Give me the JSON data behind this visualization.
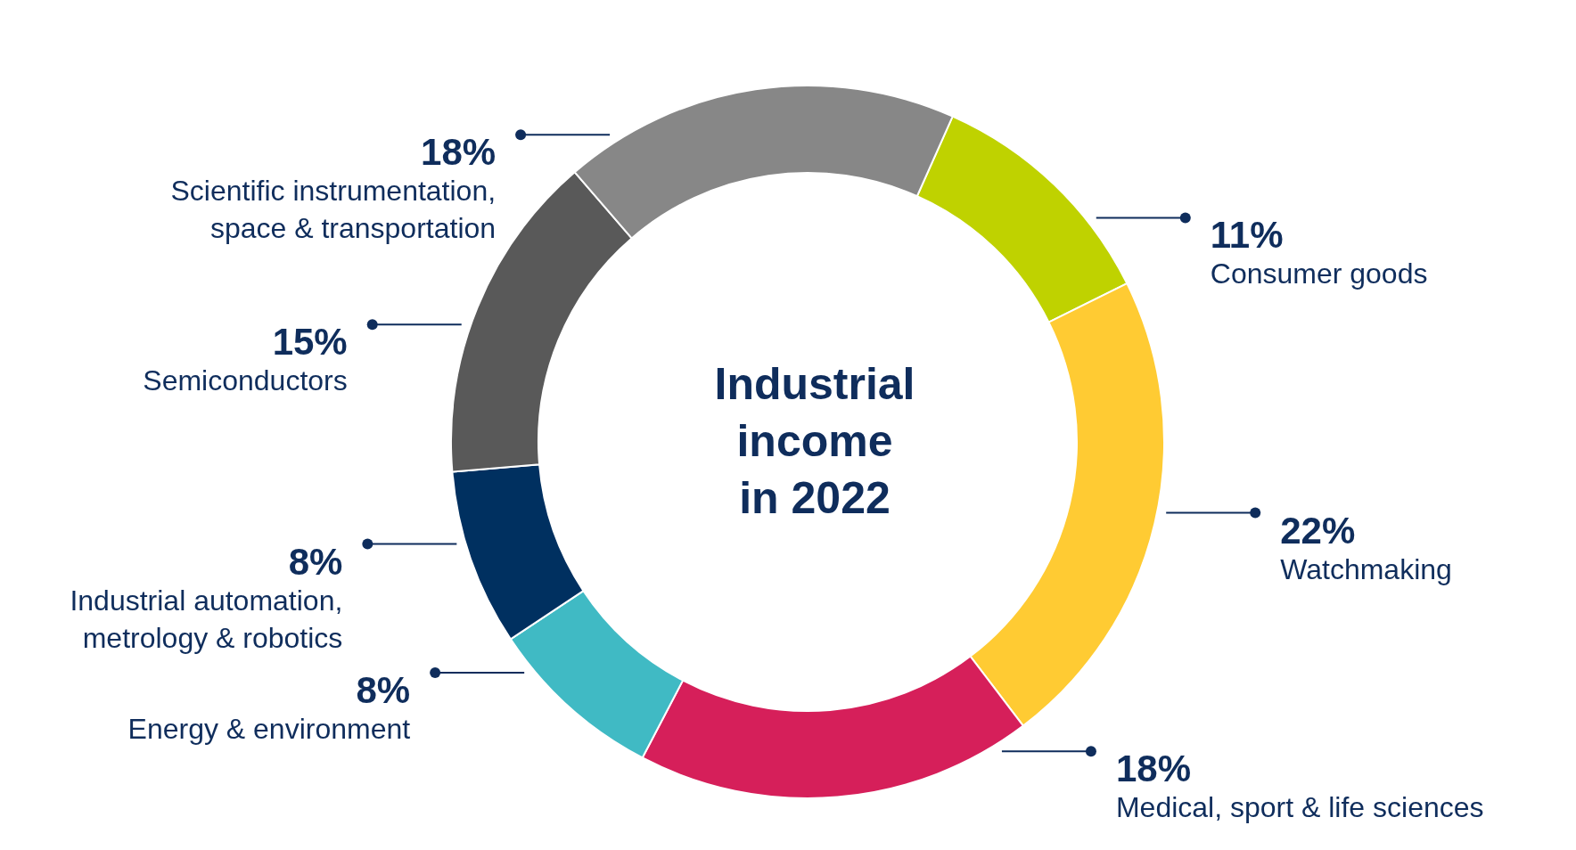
{
  "chart_data": {
    "type": "donut",
    "title": "Industrial income in 2022",
    "categories": [
      "Consumer goods",
      "Watchmaking",
      "Medical, sport & life sciences",
      "Energy & environment",
      "Industrial automation, metrology & robotics",
      "Semiconductors",
      "Scientific instrumentation, space & transportation"
    ],
    "values": [
      11,
      22,
      18,
      8,
      8,
      15,
      18
    ],
    "colors": [
      "#bfd200",
      "#ffcb33",
      "#d61f5a",
      "#40bac4",
      "#003060",
      "#595959",
      "#878787"
    ],
    "value_labels": [
      "11%",
      "22%",
      "18%",
      "8%",
      "8%",
      "15%",
      "18%"
    ]
  }
}
